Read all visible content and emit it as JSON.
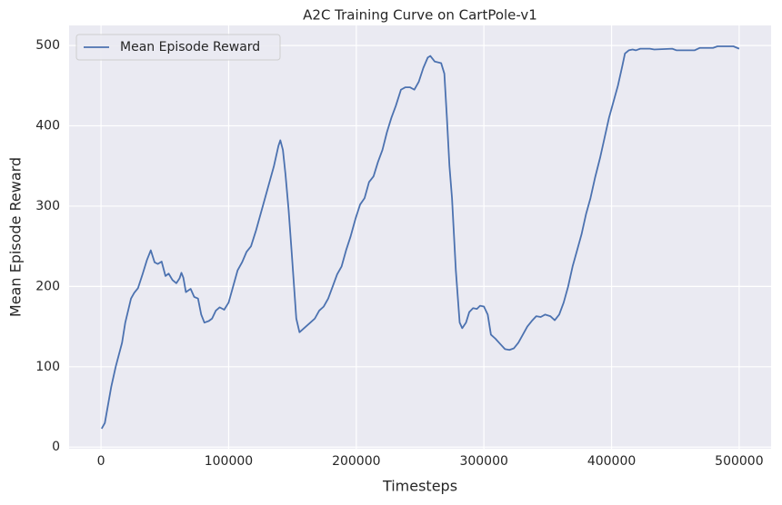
{
  "chart_data": {
    "type": "line",
    "title": "A2C Training Curve on CartPole-v1",
    "x_label": "Timesteps",
    "y_label": "Mean Episode Reward",
    "xlim": [
      -25000,
      525000
    ],
    "ylim": [
      -2,
      525
    ],
    "xticks": [
      0,
      100000,
      200000,
      300000,
      400000,
      500000
    ],
    "yticks": [
      0,
      100,
      200,
      300,
      400,
      500
    ],
    "grid": true,
    "legend": "upper left",
    "x": [
      500,
      3000,
      8000,
      11500,
      16500,
      19000,
      23500,
      26000,
      29000,
      32500,
      36000,
      39000,
      42000,
      44500,
      47500,
      50500,
      53000,
      56000,
      59000,
      61500,
      63000,
      64500,
      66500,
      70200,
      73000,
      76000,
      78500,
      81000,
      84500,
      87000,
      90000,
      93000,
      96500,
      100000,
      103500,
      107000,
      110500,
      114000,
      117500,
      121500,
      128500,
      135500,
      139000,
      140500,
      142500,
      144500,
      147000,
      149500,
      153000,
      155500,
      160500,
      164000,
      167500,
      171000,
      174500,
      178000,
      181500,
      185000,
      188500,
      192000,
      195500,
      199500,
      203000,
      206500,
      210000,
      213500,
      217000,
      220500,
      224000,
      227500,
      231000,
      235000,
      238500,
      242000,
      245500,
      249000,
      252500,
      256000,
      258000,
      261500,
      266500,
      269000,
      271000,
      273000,
      275000,
      278000,
      281000,
      283000,
      286000,
      288500,
      291500,
      294500,
      297000,
      300000,
      303000,
      305500,
      309000,
      313000,
      316500,
      320000,
      323500,
      327000,
      330500,
      334000,
      337500,
      341000,
      344500,
      348000,
      352000,
      355500,
      359000,
      362500,
      366000,
      369500,
      373000,
      376500,
      380000,
      383500,
      387000,
      391000,
      394500,
      398000,
      401500,
      405000,
      408500,
      410500,
      413500,
      416500,
      419000,
      422500,
      430000,
      433500,
      447500,
      451000,
      465000,
      469000,
      479500,
      483000,
      495500,
      498500,
      500000
    ],
    "series": [
      {
        "name": "Mean Episode Reward",
        "color": "#4c72b0",
        "values": [
          23,
          30,
          75,
          100,
          130,
          155,
          185,
          192,
          198,
          215,
          233,
          245,
          230,
          228,
          231,
          213,
          216,
          208,
          204,
          210,
          217,
          211,
          193,
          197,
          187,
          185,
          165,
          155,
          157,
          160,
          170,
          174,
          171,
          180,
          200,
          220,
          230,
          243,
          250,
          270,
          310,
          350,
          375,
          382,
          370,
          340,
          295,
          240,
          160,
          143,
          150,
          155,
          160,
          170,
          175,
          185,
          200,
          215,
          225,
          245,
          262,
          285,
          302,
          310,
          330,
          337,
          355,
          370,
          392,
          410,
          425,
          445,
          448,
          448,
          445,
          455,
          472,
          485,
          487,
          480,
          478,
          465,
          410,
          350,
          310,
          220,
          155,
          148,
          155,
          168,
          173,
          172,
          176,
          175,
          165,
          140,
          135,
          128,
          122,
          121,
          123,
          130,
          140,
          150,
          157,
          163,
          162,
          165,
          163,
          158,
          165,
          180,
          200,
          225,
          245,
          265,
          290,
          310,
          335,
          360,
          385,
          410,
          430,
          450,
          475,
          490,
          494,
          495,
          494,
          496,
          496,
          495,
          496,
          494,
          494,
          497,
          497,
          499,
          499,
          497,
          496
        ]
      }
    ]
  }
}
